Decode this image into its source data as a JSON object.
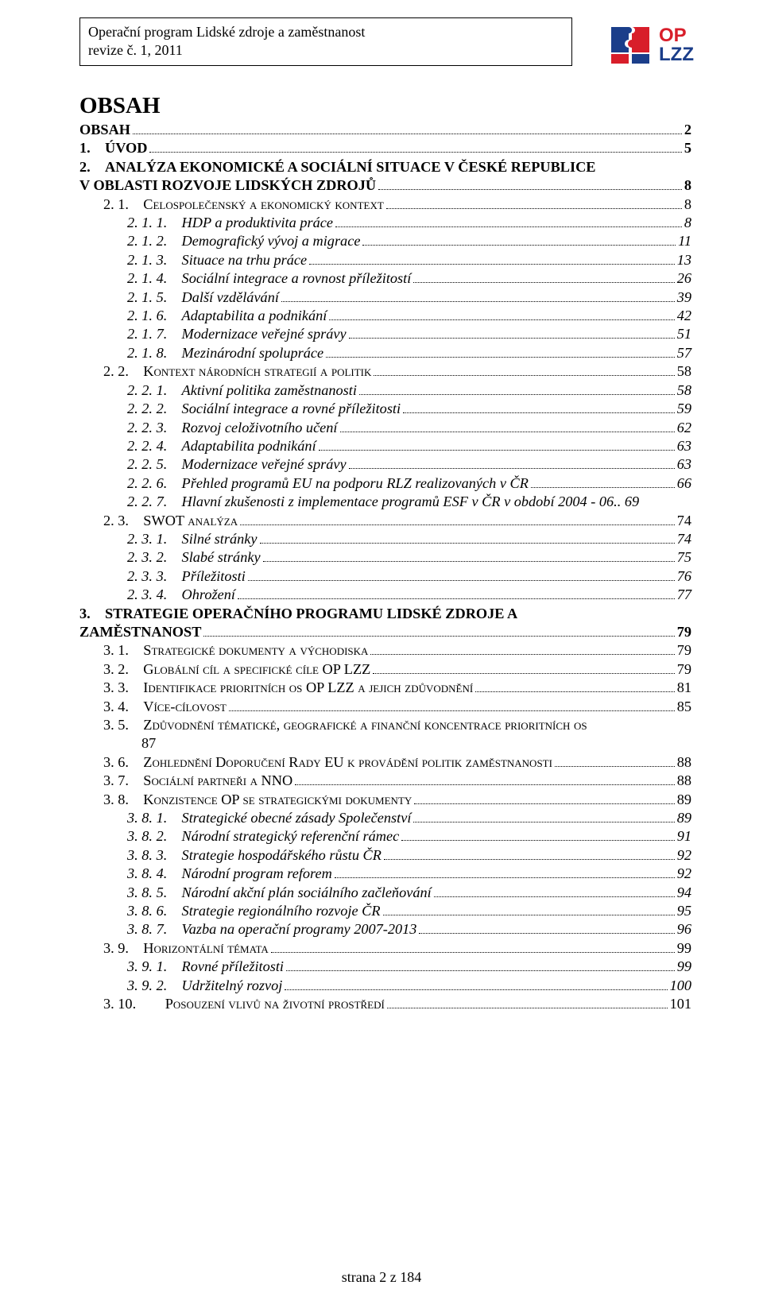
{
  "header": {
    "line1": "Operační program Lidské zdroje a zaměstnanost",
    "line2": "revize č. 1, 2011"
  },
  "logo": {
    "bg": "#ffffff",
    "puzzle_color": "#1b3e8a",
    "text_red": "#d81e2a",
    "text_blue": "#1b3e8a",
    "label_top": "OP",
    "label_bottom": "LZZ"
  },
  "title": "OBSAH",
  "toc": [
    {
      "indent": 1,
      "bold": true,
      "sc": false,
      "italic": false,
      "label": "OBSAH",
      "page": "2"
    },
    {
      "indent": 1,
      "bold": true,
      "sc": false,
      "italic": false,
      "label": "1. ÚVOD",
      "page": "5"
    },
    {
      "indent": 1,
      "bold": true,
      "sc": false,
      "italic": false,
      "label": "2. ANALÝZA EKONOMICKÉ A SOCIÁLNÍ SITUACE V ČESKÉ REPUBLICE",
      "wrap": "V OBLASTI ROZVOJE LIDSKÝCH ZDROJŮ",
      "page": "8"
    },
    {
      "indent": 2,
      "bold": false,
      "sc": true,
      "italic": false,
      "label": "2. 1. Celospolečenský a ekonomický kontext",
      "page": "8"
    },
    {
      "indent": 3,
      "bold": false,
      "sc": false,
      "italic": true,
      "label": "2. 1. 1. HDP a produktivita práce",
      "page": "8"
    },
    {
      "indent": 3,
      "bold": false,
      "sc": false,
      "italic": true,
      "label": "2. 1. 2. Demografický vývoj a migrace",
      "page": "11"
    },
    {
      "indent": 3,
      "bold": false,
      "sc": false,
      "italic": true,
      "label": "2. 1. 3. Situace na trhu práce",
      "page": "13"
    },
    {
      "indent": 3,
      "bold": false,
      "sc": false,
      "italic": true,
      "label": "2. 1. 4. Sociální integrace a rovnost příležitostí",
      "page": "26"
    },
    {
      "indent": 3,
      "bold": false,
      "sc": false,
      "italic": true,
      "label": "2. 1. 5. Další vzdělávání",
      "page": "39"
    },
    {
      "indent": 3,
      "bold": false,
      "sc": false,
      "italic": true,
      "label": "2. 1. 6. Adaptabilita a podnikání",
      "page": "42"
    },
    {
      "indent": 3,
      "bold": false,
      "sc": false,
      "italic": true,
      "label": "2. 1. 7. Modernizace veřejné správy",
      "page": "51"
    },
    {
      "indent": 3,
      "bold": false,
      "sc": false,
      "italic": true,
      "label": "2. 1. 8. Mezinárodní spolupráce",
      "page": "57"
    },
    {
      "indent": 2,
      "bold": false,
      "sc": true,
      "italic": false,
      "label": "2. 2. Kontext národních strategií a politik",
      "page": "58"
    },
    {
      "indent": 3,
      "bold": false,
      "sc": false,
      "italic": true,
      "label": "2. 2. 1. Aktivní politika zaměstnanosti",
      "page": "58"
    },
    {
      "indent": 3,
      "bold": false,
      "sc": false,
      "italic": true,
      "label": "2. 2. 2. Sociální integrace a rovné příležitosti",
      "page": "59"
    },
    {
      "indent": 3,
      "bold": false,
      "sc": false,
      "italic": true,
      "label": "2. 2. 3. Rozvoj celoživotního učení",
      "page": "62"
    },
    {
      "indent": 3,
      "bold": false,
      "sc": false,
      "italic": true,
      "label": "2. 2. 4. Adaptabilita podnikání",
      "page": "63"
    },
    {
      "indent": 3,
      "bold": false,
      "sc": false,
      "italic": true,
      "label": "2. 2. 5. Modernizace veřejné správy",
      "page": "63"
    },
    {
      "indent": 3,
      "bold": false,
      "sc": false,
      "italic": true,
      "label": "2. 2. 6. Přehled programů EU na podporu RLZ realizovaných v ČR",
      "page": "66"
    },
    {
      "indent": 3,
      "bold": false,
      "sc": false,
      "italic": true,
      "label": "2. 2. 7. Hlavní zkušenosti z implementace programů  ESF v ČR v období 2004 - 06",
      "page": "69",
      "tight": true
    },
    {
      "indent": 2,
      "bold": false,
      "sc": true,
      "italic": false,
      "label": "2. 3. SWOT analýza",
      "page": "74"
    },
    {
      "indent": 3,
      "bold": false,
      "sc": false,
      "italic": true,
      "label": "2. 3. 1. Silné stránky",
      "page": "74"
    },
    {
      "indent": 3,
      "bold": false,
      "sc": false,
      "italic": true,
      "label": "2. 3. 2. Slabé stránky",
      "page": "75"
    },
    {
      "indent": 3,
      "bold": false,
      "sc": false,
      "italic": true,
      "label": "2. 3. 3. Příležitosti",
      "page": "76"
    },
    {
      "indent": 3,
      "bold": false,
      "sc": false,
      "italic": true,
      "label": "2. 3. 4. Ohrožení",
      "page": "77"
    },
    {
      "indent": 1,
      "bold": true,
      "sc": false,
      "italic": false,
      "label": "3. STRATEGIE OPERAČNÍHO PROGRAMU LIDSKÉ ZDROJE A",
      "wrap": "ZAMĚSTNANOST",
      "page": "79"
    },
    {
      "indent": 2,
      "bold": false,
      "sc": true,
      "italic": false,
      "label": "3. 1. Strategické dokumenty a východiska",
      "page": "79"
    },
    {
      "indent": 2,
      "bold": false,
      "sc": true,
      "italic": false,
      "label": "3. 2. Globální cíl a specifické cíle OP LZZ",
      "page": "79"
    },
    {
      "indent": 2,
      "bold": false,
      "sc": true,
      "italic": false,
      "label": "3. 3. Identifikace prioritních os OP LZZ a jejich zdůvodnění",
      "page": "81"
    },
    {
      "indent": 2,
      "bold": false,
      "sc": true,
      "italic": false,
      "label": "3. 4. Více-cílovost",
      "page": "85"
    },
    {
      "indent": 2,
      "bold": false,
      "sc": true,
      "italic": false,
      "label": "3. 5. Zdůvodnění tématické, geografické a finanční koncentrace prioritních os",
      "suffix": "87",
      "nopagedots": true
    },
    {
      "indent": 2,
      "bold": false,
      "sc": true,
      "italic": false,
      "label": "3. 6. Zohlednění Doporučení Rady EU k provádění politik zaměstnanosti",
      "page": "88"
    },
    {
      "indent": 2,
      "bold": false,
      "sc": true,
      "italic": false,
      "label": "3. 7. Sociální partneři a NNO",
      "page": "88"
    },
    {
      "indent": 2,
      "bold": false,
      "sc": true,
      "italic": false,
      "label": "3. 8. Konzistence OP se strategickými dokumenty",
      "page": "89"
    },
    {
      "indent": 3,
      "bold": false,
      "sc": false,
      "italic": true,
      "label": "3. 8. 1. Strategické obecné zásady Společenství",
      "page": "89"
    },
    {
      "indent": 3,
      "bold": false,
      "sc": false,
      "italic": true,
      "label": "3. 8. 2. Národní strategický referenční rámec",
      "page": "91"
    },
    {
      "indent": 3,
      "bold": false,
      "sc": false,
      "italic": true,
      "label": "3. 8. 3. Strategie hospodářského růstu ČR",
      "page": "92"
    },
    {
      "indent": 3,
      "bold": false,
      "sc": false,
      "italic": true,
      "label": "3. 8. 4. Národní program reforem",
      "page": "92"
    },
    {
      "indent": 3,
      "bold": false,
      "sc": false,
      "italic": true,
      "label": "3. 8. 5. Národní akční plán sociálního začleňování",
      "page": "94"
    },
    {
      "indent": 3,
      "bold": false,
      "sc": false,
      "italic": true,
      "label": "3. 8. 6. Strategie regionálního rozvoje ČR",
      "page": "95"
    },
    {
      "indent": 3,
      "bold": false,
      "sc": false,
      "italic": true,
      "label": "3. 8. 7. Vazba na operační programy 2007-2013",
      "page": "96"
    },
    {
      "indent": 2,
      "bold": false,
      "sc": true,
      "italic": false,
      "label": "3. 9. Horizontální témata",
      "page": "99"
    },
    {
      "indent": 3,
      "bold": false,
      "sc": false,
      "italic": true,
      "label": "3. 9. 1. Rovné příležitosti",
      "page": "99"
    },
    {
      "indent": 3,
      "bold": false,
      "sc": false,
      "italic": true,
      "label": "3. 9. 2. Udržitelný rozvoj",
      "page": "100"
    },
    {
      "indent": 2,
      "bold": false,
      "sc": true,
      "italic": false,
      "label": "3. 10.  Posouzení vlivů na životní prostředí",
      "page": "101"
    }
  ],
  "footer": "strana 2 z 184"
}
